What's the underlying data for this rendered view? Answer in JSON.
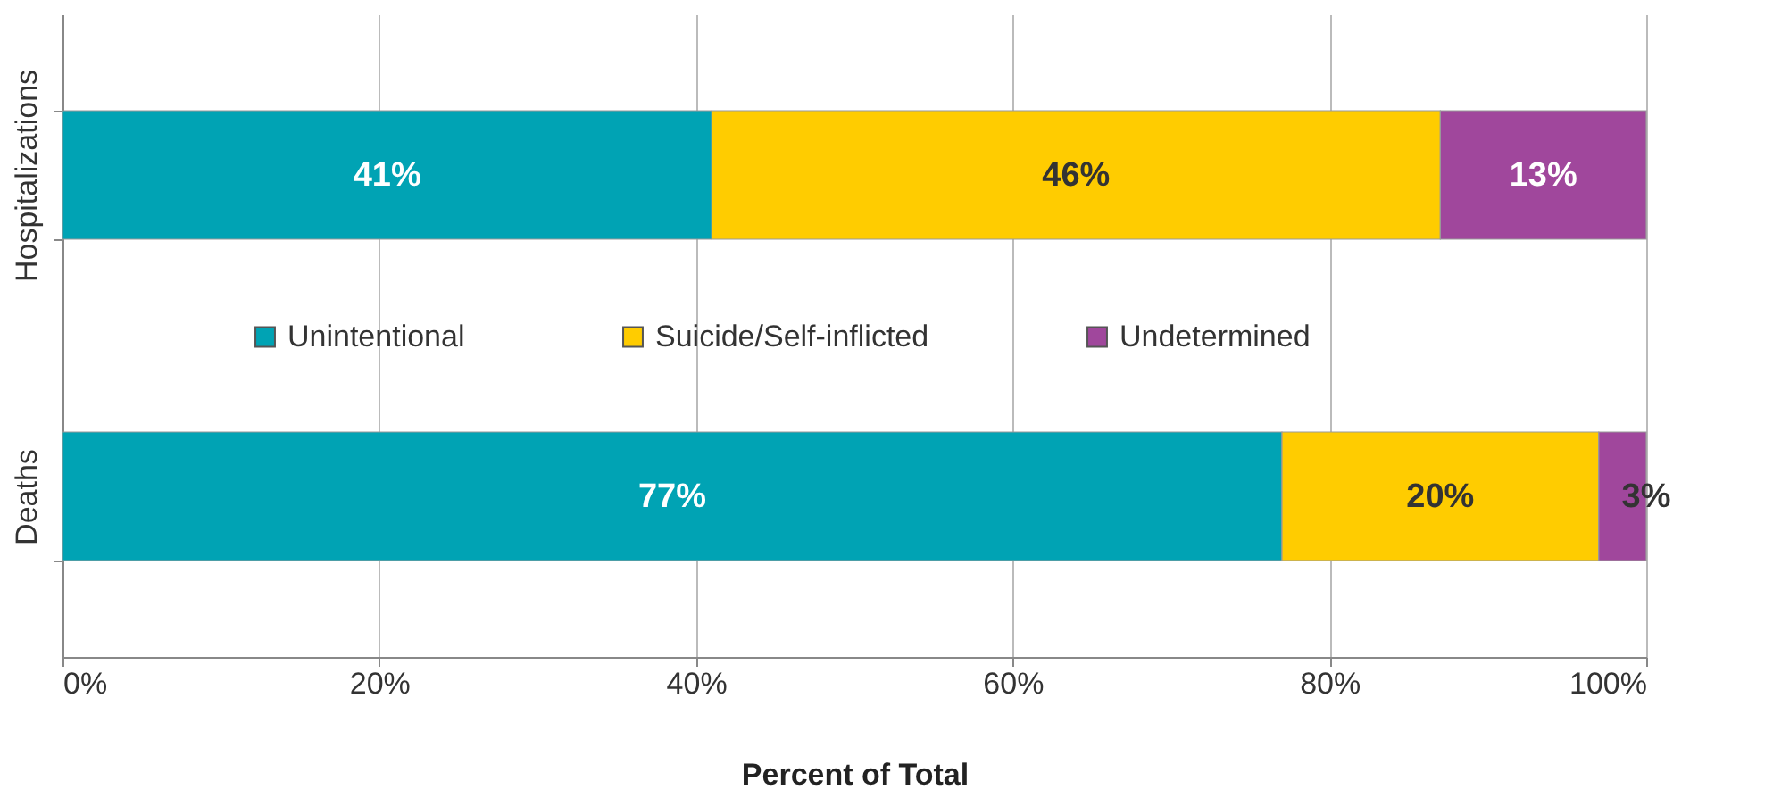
{
  "chart_data": {
    "type": "bar",
    "orientation": "horizontal",
    "stacked": true,
    "categories": [
      "Hospitalizations",
      "Deaths"
    ],
    "series": [
      {
        "name": "Unintentional",
        "color": "#00a3b4",
        "values": [
          41,
          77
        ],
        "value_labels": [
          "41%",
          "77%"
        ]
      },
      {
        "name": "Suicide/Self-inflicted",
        "color": "#ffcc00",
        "values": [
          46,
          20
        ],
        "value_labels": [
          "46%",
          "20%"
        ]
      },
      {
        "name": "Undetermined",
        "color": "#a0479c",
        "values": [
          13,
          3
        ],
        "value_labels": [
          "13%",
          "3%"
        ]
      }
    ],
    "xlabel": "Percent of Total",
    "xlim": [
      0,
      100
    ],
    "xticks": [
      {
        "value": 0,
        "label": "0%"
      },
      {
        "value": 20,
        "label": "20%"
      },
      {
        "value": 40,
        "label": "40%"
      },
      {
        "value": 60,
        "label": "60%"
      },
      {
        "value": 80,
        "label": "80%"
      },
      {
        "value": 100,
        "label": "100%"
      }
    ],
    "grid": "x",
    "legend": "center"
  }
}
